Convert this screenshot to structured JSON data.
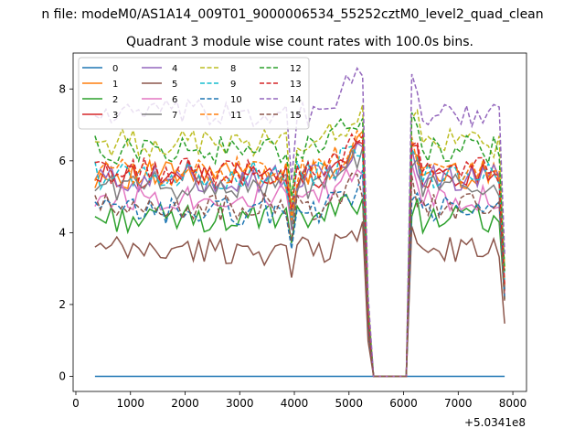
{
  "chart_data": {
    "type": "line",
    "suptitle": "n file: modeM0/AS1A14_009T01_9000006534_55252cztM0_level2_quad_clean",
    "title": "Quadrant 3 module wise count rates with 100.0s bins.",
    "xlabel": "",
    "ylabel": "",
    "x_offset_label": "+5.0341e8",
    "xlim": [
      -50,
      8250
    ],
    "ylim": [
      -0.42,
      9.0
    ],
    "x_ticks": [
      0,
      1000,
      2000,
      3000,
      4000,
      5000,
      6000,
      7000,
      8000
    ],
    "x_tick_labels": [
      "0",
      "1000",
      "2000",
      "3000",
      "4000",
      "5000",
      "6000",
      "7000",
      "8000"
    ],
    "y_ticks": [
      0,
      2,
      4,
      6,
      8
    ],
    "y_tick_labels": [
      "0",
      "2",
      "4",
      "6",
      "8"
    ],
    "x_range": [
      350,
      7850
    ],
    "bin_width": 100,
    "gap": [
      5450,
      6050
    ],
    "legend": {
      "placement": "top-left",
      "columns": 4
    },
    "series": [
      {
        "name": "0",
        "color": "#1f77b4",
        "dash": "solid",
        "base": 0.0,
        "amp": 0.0,
        "phase": 0
      },
      {
        "name": "1",
        "color": "#ff7f0e",
        "dash": "solid",
        "base": 5.6,
        "amp": 0.25,
        "phase": 1
      },
      {
        "name": "2",
        "color": "#2ca02c",
        "dash": "solid",
        "base": 4.4,
        "amp": 0.25,
        "phase": 2
      },
      {
        "name": "3",
        "color": "#d62728",
        "dash": "solid",
        "base": 5.6,
        "amp": 0.25,
        "phase": 3
      },
      {
        "name": "4",
        "color": "#9467bd",
        "dash": "solid",
        "base": 5.5,
        "amp": 0.25,
        "phase": 4
      },
      {
        "name": "5",
        "color": "#8c564b",
        "dash": "solid",
        "base": 3.5,
        "amp": 0.25,
        "phase": 5
      },
      {
        "name": "6",
        "color": "#e377c2",
        "dash": "solid",
        "base": 5.0,
        "amp": 0.25,
        "phase": 6
      },
      {
        "name": "7",
        "color": "#7f7f7f",
        "dash": "solid",
        "base": 5.3,
        "amp": 0.25,
        "phase": 7
      },
      {
        "name": "8",
        "color": "#bcbd22",
        "dash": "dashed",
        "base": 6.5,
        "amp": 0.25,
        "phase": 8
      },
      {
        "name": "9",
        "color": "#17becf",
        "dash": "dashed",
        "base": 5.6,
        "amp": 0.25,
        "phase": 9
      },
      {
        "name": "10",
        "color": "#1f77b4",
        "dash": "dashed",
        "base": 4.6,
        "amp": 0.25,
        "phase": 10
      },
      {
        "name": "11",
        "color": "#ff7f0e",
        "dash": "dashed",
        "base": 5.7,
        "amp": 0.25,
        "phase": 11
      },
      {
        "name": "12",
        "color": "#2ca02c",
        "dash": "dashed",
        "base": 6.3,
        "amp": 0.25,
        "phase": 12
      },
      {
        "name": "13",
        "color": "#d62728",
        "dash": "dashed",
        "base": 5.7,
        "amp": 0.25,
        "phase": 13
      },
      {
        "name": "14",
        "color": "#9467bd",
        "dash": "dashed",
        "base": 7.3,
        "amp": 0.25,
        "phase": 14
      },
      {
        "name": "15",
        "color": "#8c564b",
        "dash": "dashed",
        "base": 4.7,
        "amp": 0.25,
        "phase": 15
      }
    ],
    "dip_center": 3950,
    "dip_factor": 0.22,
    "rise_factor": 0.15
  }
}
